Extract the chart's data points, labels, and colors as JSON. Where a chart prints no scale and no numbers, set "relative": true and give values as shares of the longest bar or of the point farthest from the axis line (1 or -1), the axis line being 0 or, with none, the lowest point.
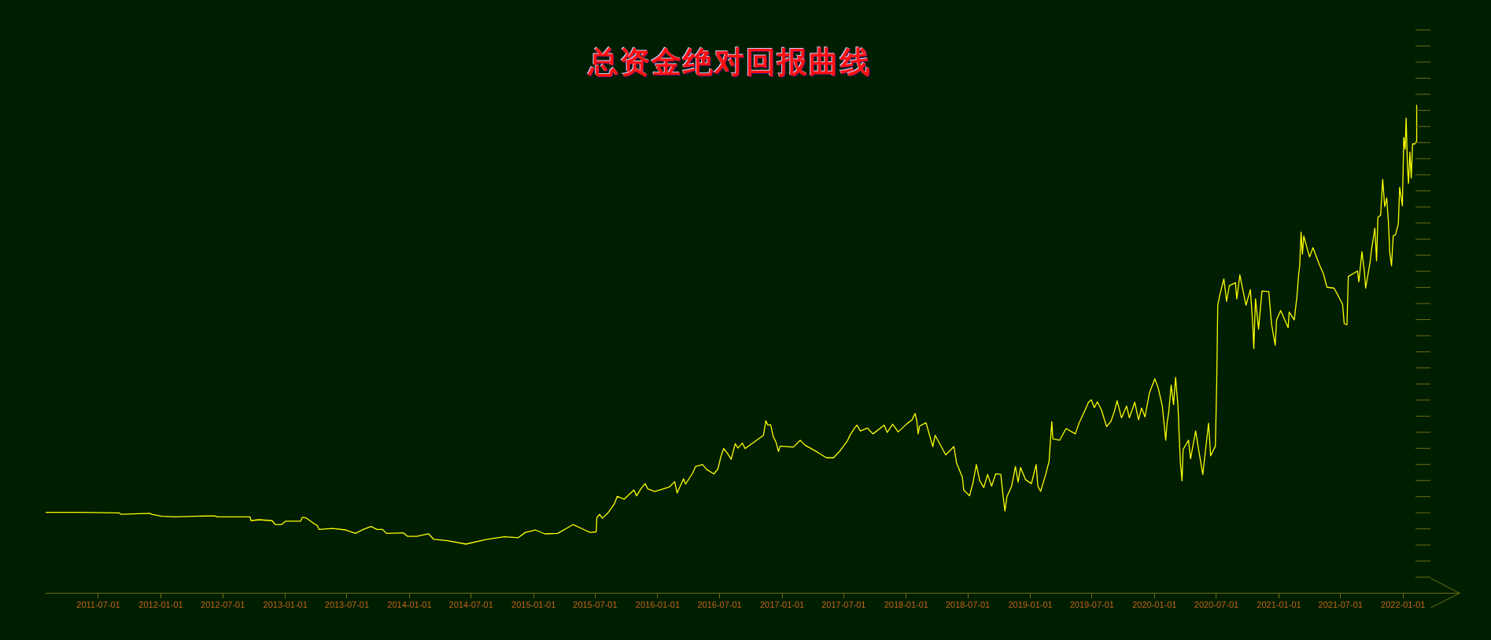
{
  "chart_data": {
    "type": "line",
    "title": "总资金绝对回报曲线",
    "relative": true,
    "color": "#ffff00",
    "xlim": [
      "2011-01-27",
      "2022-06-16"
    ],
    "xticks": [
      "2011-07-01",
      "2012-01-01",
      "2012-07-01",
      "2013-01-01",
      "2013-07-01",
      "2014-01-01",
      "2014-07-01",
      "2015-01-01",
      "2015-07-01",
      "2016-01-01",
      "2016-07-01",
      "2017-01-01",
      "2017-07-01",
      "2018-01-01",
      "2018-07-01",
      "2019-01-01",
      "2019-07-01",
      "2020-01-01",
      "2020-07-01",
      "2021-01-01",
      "2021-07-01",
      "2022-01-01"
    ],
    "x": [
      "2011-01-27",
      "2011-05-10",
      "2011-08-31",
      "2011-09-06",
      "2011-11-29",
      "2011-12-05",
      "2012-01-03",
      "2012-02-11",
      "2012-06-07",
      "2012-06-15",
      "2012-09-19",
      "2012-09-22",
      "2012-10-15",
      "2012-11-23",
      "2012-12-02",
      "2012-12-21",
      "2013-01-02",
      "2013-02-15",
      "2013-02-20",
      "2013-03-02",
      "2013-03-24",
      "2013-04-05",
      "2013-04-10",
      "2013-05-20",
      "2013-06-28",
      "2013-07-26",
      "2013-08-18",
      "2013-09-10",
      "2013-09-27",
      "2013-10-14",
      "2013-10-25",
      "2013-12-14",
      "2013-12-26",
      "2014-01-23",
      "2014-02-26",
      "2014-03-13",
      "2014-04-22",
      "2014-06-16",
      "2014-08-12",
      "2014-10-07",
      "2014-11-16",
      "2014-12-08",
      "2015-01-06",
      "2015-02-03",
      "2015-03-13",
      "2015-04-27",
      "2015-05-31",
      "2015-06-16",
      "2015-07-04",
      "2015-07-06",
      "2015-07-14",
      "2015-07-22",
      "2015-08-09",
      "2015-08-26",
      "2015-09-04",
      "2015-09-24",
      "2015-10-23",
      "2015-10-31",
      "2015-11-13",
      "2015-11-25",
      "2015-12-03",
      "2015-12-24",
      "2016-02-04",
      "2016-02-20",
      "2016-02-27",
      "2016-03-17",
      "2016-03-23",
      "2016-04-13",
      "2016-04-21",
      "2016-05-12",
      "2016-05-24",
      "2016-06-14",
      "2016-06-26",
      "2016-07-05",
      "2016-07-13",
      "2016-07-24",
      "2016-08-04",
      "2016-08-16",
      "2016-08-24",
      "2016-09-06",
      "2016-09-14",
      "2016-10-24",
      "2016-11-07",
      "2016-11-14",
      "2016-11-20",
      "2016-11-28",
      "2016-12-06",
      "2016-12-14",
      "2016-12-21",
      "2016-12-26",
      "2017-02-03",
      "2017-02-23",
      "2017-03-09",
      "2017-04-16",
      "2017-05-11",
      "2017-06-01",
      "2017-06-21",
      "2017-07-12",
      "2017-07-20",
      "2017-08-02",
      "2017-08-09",
      "2017-08-19",
      "2017-09-09",
      "2017-09-25",
      "2017-10-28",
      "2017-11-06",
      "2017-11-22",
      "2017-12-08",
      "2018-01-03",
      "2018-01-18",
      "2018-01-27",
      "2018-02-01",
      "2018-02-05",
      "2018-02-09",
      "2018-02-28",
      "2018-03-20",
      "2018-03-27",
      "2018-04-27",
      "2018-05-21",
      "2018-05-29",
      "2018-06-15",
      "2018-06-19",
      "2018-07-06",
      "2018-07-16",
      "2018-07-26",
      "2018-08-05",
      "2018-08-17",
      "2018-08-28",
      "2018-09-09",
      "2018-09-21",
      "2018-10-06",
      "2018-10-12",
      "2018-10-18",
      "2018-10-24",
      "2018-11-07",
      "2018-11-18",
      "2018-11-26",
      "2018-12-03",
      "2018-12-18",
      "2019-01-04",
      "2019-01-18",
      "2019-01-23",
      "2019-01-31",
      "2019-02-15",
      "2019-02-25",
      "2019-03-01",
      "2019-03-05",
      "2019-03-08",
      "2019-03-28",
      "2019-04-16",
      "2019-05-13",
      "2019-05-24",
      "2019-06-11",
      "2019-06-21",
      "2019-06-29",
      "2019-07-08",
      "2019-07-17",
      "2019-07-29",
      "2019-08-13",
      "2019-08-26",
      "2019-09-05",
      "2019-09-13",
      "2019-09-26",
      "2019-10-11",
      "2019-10-19",
      "2019-11-04",
      "2019-11-15",
      "2019-11-24",
      "2019-12-04",
      "2019-12-17",
      "2020-01-02",
      "2020-01-12",
      "2020-01-24",
      "2020-02-03",
      "2020-02-07",
      "2020-02-12",
      "2020-02-19",
      "2020-02-26",
      "2020-03-03",
      "2020-03-10",
      "2020-03-17",
      "2020-03-22",
      "2020-03-25",
      "2020-04-10",
      "2020-04-16",
      "2020-05-01",
      "2020-05-09",
      "2020-05-22",
      "2020-06-08",
      "2020-06-14",
      "2020-06-28",
      "2020-07-02",
      "2020-07-05",
      "2020-07-11",
      "2020-07-23",
      "2020-07-31",
      "2020-08-08",
      "2020-08-26",
      "2020-08-30",
      "2020-09-08",
      "2020-09-26",
      "2020-10-09",
      "2020-10-16",
      "2020-10-19",
      "2020-10-24",
      "2020-11-02",
      "2020-11-12",
      "2020-12-02",
      "2020-12-10",
      "2020-12-21",
      "2020-12-25",
      "2021-01-06",
      "2021-01-28",
      "2021-01-31",
      "2021-02-15",
      "2021-02-23",
      "2021-02-28",
      "2021-03-03",
      "2021-03-07",
      "2021-03-11",
      "2021-03-15",
      "2021-03-23",
      "2021-04-01",
      "2021-04-11",
      "2021-04-30",
      "2021-05-12",
      "2021-05-22",
      "2021-06-12",
      "2021-06-23",
      "2021-07-07",
      "2021-07-12",
      "2021-07-20",
      "2021-07-24",
      "2021-08-20",
      "2021-08-24",
      "2021-09-02",
      "2021-09-09",
      "2021-09-13",
      "2021-09-26",
      "2021-10-01",
      "2021-10-10",
      "2021-10-15",
      "2021-10-19",
      "2021-10-27",
      "2021-11-02",
      "2021-11-08",
      "2021-11-14",
      "2021-11-19",
      "2021-11-23",
      "2021-11-28",
      "2021-12-03",
      "2021-12-10",
      "2021-12-18",
      "2021-12-22",
      "2021-12-30",
      "2022-01-03",
      "2022-01-07",
      "2022-01-10",
      "2022-01-14",
      "2022-01-17",
      "2022-01-21",
      "2022-01-25",
      "2022-01-29",
      "2022-02-05",
      "2022-02-09",
      "2022-02-10"
    ],
    "values": [
      0.165,
      0.165,
      0.164,
      0.161,
      0.163,
      0.161,
      0.157,
      0.156,
      0.158,
      0.156,
      0.156,
      0.148,
      0.15,
      0.148,
      0.14,
      0.14,
      0.147,
      0.147,
      0.155,
      0.154,
      0.143,
      0.138,
      0.13,
      0.132,
      0.129,
      0.122,
      0.13,
      0.136,
      0.13,
      0.13,
      0.122,
      0.123,
      0.116,
      0.116,
      0.121,
      0.11,
      0.107,
      0.1,
      0.109,
      0.115,
      0.113,
      0.124,
      0.129,
      0.121,
      0.122,
      0.14,
      0.129,
      0.124,
      0.125,
      0.154,
      0.161,
      0.153,
      0.165,
      0.182,
      0.198,
      0.192,
      0.211,
      0.199,
      0.214,
      0.224,
      0.213,
      0.208,
      0.217,
      0.228,
      0.205,
      0.234,
      0.223,
      0.246,
      0.259,
      0.263,
      0.253,
      0.244,
      0.254,
      0.28,
      0.296,
      0.286,
      0.274,
      0.306,
      0.297,
      0.307,
      0.296,
      0.316,
      0.323,
      0.353,
      0.344,
      0.345,
      0.32,
      0.309,
      0.29,
      0.301,
      0.299,
      0.313,
      0.303,
      0.288,
      0.277,
      0.277,
      0.292,
      0.312,
      0.324,
      0.338,
      0.344,
      0.332,
      0.338,
      0.326,
      0.344,
      0.329,
      0.346,
      0.33,
      0.347,
      0.355,
      0.368,
      0.352,
      0.326,
      0.342,
      0.349,
      0.3,
      0.323,
      0.283,
      0.3,
      0.266,
      0.237,
      0.211,
      0.199,
      0.225,
      0.263,
      0.23,
      0.216,
      0.243,
      0.219,
      0.244,
      0.243,
      0.203,
      0.168,
      0.197,
      0.219,
      0.259,
      0.227,
      0.257,
      0.232,
      0.224,
      0.263,
      0.219,
      0.208,
      0.243,
      0.27,
      0.313,
      0.351,
      0.316,
      0.313,
      0.337,
      0.326,
      0.348,
      0.375,
      0.391,
      0.396,
      0.38,
      0.392,
      0.375,
      0.341,
      0.352,
      0.372,
      0.394,
      0.359,
      0.383,
      0.359,
      0.391,
      0.355,
      0.379,
      0.361,
      0.41,
      0.439,
      0.42,
      0.383,
      0.313,
      0.348,
      0.372,
      0.426,
      0.386,
      0.442,
      0.383,
      0.267,
      0.23,
      0.294,
      0.313,
      0.275,
      0.332,
      0.297,
      0.243,
      0.348,
      0.281,
      0.301,
      0.434,
      0.59,
      0.611,
      0.644,
      0.598,
      0.63,
      0.636,
      0.603,
      0.652,
      0.59,
      0.622,
      0.55,
      0.501,
      0.603,
      0.541,
      0.619,
      0.618,
      0.552,
      0.508,
      0.56,
      0.579,
      0.544,
      0.576,
      0.56,
      0.609,
      0.654,
      0.671,
      0.74,
      0.695,
      0.732,
      0.711,
      0.689,
      0.708,
      0.673,
      0.654,
      0.627,
      0.625,
      0.611,
      0.592,
      0.552,
      0.55,
      0.649,
      0.66,
      0.638,
      0.7,
      0.66,
      0.625,
      0.679,
      0.708,
      0.748,
      0.681,
      0.77,
      0.775,
      0.848,
      0.792,
      0.81,
      0.759,
      0.697,
      0.671,
      0.732,
      0.735,
      0.757,
      0.832,
      0.794,
      0.934,
      0.91,
      0.974,
      0.872,
      0.84,
      0.904,
      0.851,
      0.921,
      0.921,
      0.926,
      1.0
    ]
  }
}
